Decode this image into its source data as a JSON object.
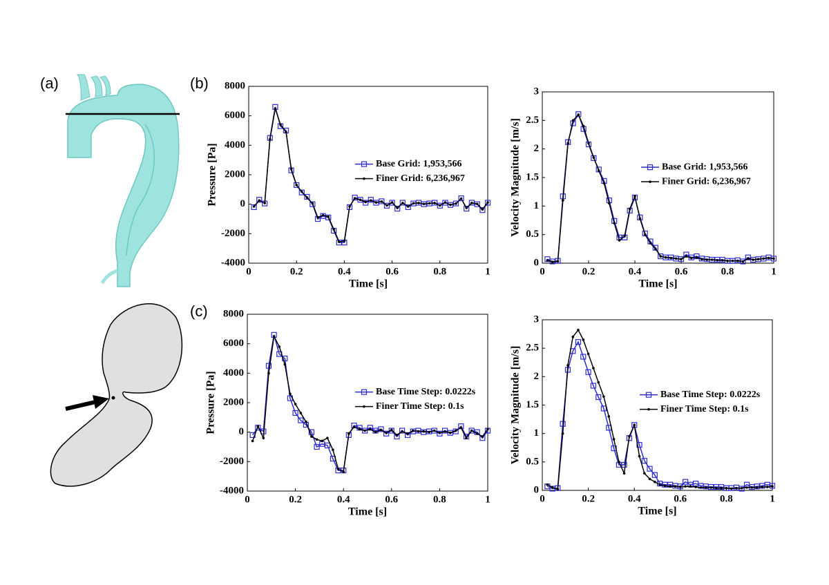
{
  "panels": {
    "a": "(a)",
    "b": "(b)",
    "c": "(c)"
  },
  "chart_data": [
    {
      "type": "line",
      "xlabel": "Time [s]",
      "ylabel": "Pressure [Pa]",
      "legend": "right",
      "xlim": [
        0,
        1
      ],
      "xticks": [
        0,
        0.2,
        0.4,
        0.6,
        0.8,
        1
      ],
      "ylim": [
        -4000,
        8000
      ],
      "yticks": [
        -4000,
        -2000,
        0,
        2000,
        4000,
        6000,
        8000
      ],
      "x": [
        0.022,
        0.044,
        0.067,
        0.089,
        0.111,
        0.133,
        0.156,
        0.178,
        0.2,
        0.222,
        0.244,
        0.267,
        0.289,
        0.311,
        0.333,
        0.356,
        0.378,
        0.4,
        0.422,
        0.444,
        0.467,
        0.489,
        0.511,
        0.533,
        0.556,
        0.578,
        0.6,
        0.622,
        0.644,
        0.667,
        0.689,
        0.711,
        0.733,
        0.756,
        0.778,
        0.8,
        0.822,
        0.844,
        0.867,
        0.889,
        0.911,
        0.933,
        0.956,
        0.978,
        1.0
      ],
      "series": [
        {
          "name": "Base Grid: 1,953,566",
          "color": "#2b2bd0",
          "marker": "square",
          "values": [
            -200,
            300,
            50,
            4500,
            6600,
            5300,
            5000,
            2300,
            1300,
            800,
            500,
            0,
            -1000,
            -800,
            -900,
            -1800,
            -2600,
            -2600,
            -200,
            450,
            300,
            100,
            300,
            100,
            200,
            -100,
            100,
            -300,
            100,
            -200,
            50,
            100,
            0,
            50,
            100,
            -100,
            100,
            -50,
            50,
            400,
            -300,
            100,
            0,
            -400,
            100
          ]
        },
        {
          "name": "Finer Grid: 6,236,967",
          "color": "#000000",
          "marker": "dot",
          "values": [
            -150,
            250,
            80,
            4400,
            6500,
            5400,
            4900,
            2400,
            1300,
            850,
            450,
            50,
            -900,
            -750,
            -850,
            -1700,
            -2550,
            -2500,
            -150,
            400,
            300,
            150,
            250,
            120,
            180,
            -80,
            120,
            -250,
            80,
            -150,
            60,
            80,
            20,
            60,
            80,
            -80,
            120,
            -40,
            40,
            380,
            -250,
            80,
            20,
            -350,
            120
          ]
        }
      ]
    },
    {
      "type": "line",
      "xlabel": "Time [s]",
      "ylabel": "Velocity Magnitude [m/s]",
      "legend": "right",
      "xlim": [
        0,
        1
      ],
      "xticks": [
        0,
        0.2,
        0.4,
        0.6,
        0.8,
        1
      ],
      "ylim": [
        0,
        3
      ],
      "yticks": [
        0,
        0.5,
        1,
        1.5,
        2,
        2.5,
        3
      ],
      "x": [
        0.022,
        0.044,
        0.067,
        0.089,
        0.111,
        0.133,
        0.156,
        0.178,
        0.2,
        0.222,
        0.244,
        0.267,
        0.289,
        0.311,
        0.333,
        0.356,
        0.378,
        0.4,
        0.422,
        0.444,
        0.467,
        0.489,
        0.511,
        0.533,
        0.556,
        0.578,
        0.6,
        0.622,
        0.644,
        0.667,
        0.689,
        0.711,
        0.733,
        0.756,
        0.778,
        0.8,
        0.822,
        0.844,
        0.867,
        0.889,
        0.911,
        0.933,
        0.956,
        0.978,
        1.0
      ],
      "series": [
        {
          "name": "Base Grid: 1,953,566",
          "color": "#2b2bd0",
          "marker": "square",
          "values": [
            0.07,
            0.03,
            0.04,
            1.17,
            2.12,
            2.45,
            2.61,
            2.35,
            2.08,
            1.84,
            1.64,
            1.44,
            1.1,
            0.74,
            0.45,
            0.45,
            0.92,
            1.15,
            0.8,
            0.52,
            0.38,
            0.27,
            0.12,
            0.1,
            0.1,
            0.08,
            0.07,
            0.15,
            0.1,
            0.12,
            0.08,
            0.07,
            0.06,
            0.06,
            0.06,
            0.04,
            0.04,
            0.05,
            0.03,
            0.1,
            0.06,
            0.07,
            0.08,
            0.1,
            0.08
          ]
        },
        {
          "name": "Finer Grid: 6,236,967",
          "color": "#000000",
          "marker": "dot",
          "values": [
            0.05,
            0.02,
            0.03,
            1.1,
            2.1,
            2.5,
            2.6,
            2.4,
            2.1,
            1.85,
            1.62,
            1.4,
            1.05,
            0.7,
            0.4,
            0.48,
            0.95,
            1.17,
            0.78,
            0.5,
            0.35,
            0.25,
            0.12,
            0.1,
            0.09,
            0.08,
            0.07,
            0.12,
            0.09,
            0.1,
            0.07,
            0.06,
            0.06,
            0.05,
            0.05,
            0.04,
            0.04,
            0.04,
            0.03,
            0.08,
            0.06,
            0.07,
            0.08,
            0.09,
            0.08
          ]
        }
      ]
    },
    {
      "type": "line",
      "xlabel": "Time [s]",
      "ylabel": "Pressure [Pa]",
      "legend": "right",
      "xlim": [
        0,
        1
      ],
      "xticks": [
        0,
        0.2,
        0.4,
        0.6,
        0.8,
        1
      ],
      "ylim": [
        -4000,
        8000
      ],
      "yticks": [
        -4000,
        -2000,
        0,
        2000,
        4000,
        6000,
        8000
      ],
      "x": [
        0.022,
        0.044,
        0.067,
        0.089,
        0.111,
        0.133,
        0.156,
        0.178,
        0.2,
        0.222,
        0.244,
        0.267,
        0.289,
        0.311,
        0.333,
        0.356,
        0.378,
        0.4,
        0.422,
        0.444,
        0.467,
        0.489,
        0.511,
        0.533,
        0.556,
        0.578,
        0.6,
        0.622,
        0.644,
        0.667,
        0.689,
        0.711,
        0.733,
        0.756,
        0.778,
        0.8,
        0.822,
        0.844,
        0.867,
        0.889,
        0.911,
        0.933,
        0.956,
        0.978,
        1.0
      ],
      "series": [
        {
          "name": "Base Time Step: 0.0222s",
          "color": "#2b2bd0",
          "marker": "square",
          "values": [
            -200,
            300,
            50,
            4500,
            6600,
            5300,
            5000,
            2300,
            1300,
            800,
            500,
            0,
            -1000,
            -800,
            -900,
            -1800,
            -2600,
            -2600,
            -200,
            450,
            300,
            100,
            300,
            100,
            200,
            -100,
            100,
            -300,
            100,
            -200,
            50,
            100,
            0,
            50,
            100,
            -100,
            100,
            -50,
            50,
            400,
            -300,
            100,
            0,
            -400,
            100
          ]
        },
        {
          "name": "Finer Time Step: 0.1s",
          "color": "#000000",
          "marker": "dot",
          "values": [
            -600,
            400,
            -400,
            4000,
            6500,
            5800,
            4600,
            2600,
            1900,
            1300,
            700,
            -300,
            -500,
            -600,
            -400,
            -1200,
            -2500,
            -2700,
            -100,
            350,
            200,
            100,
            200,
            0,
            150,
            -50,
            150,
            -200,
            50,
            -100,
            100,
            50,
            50,
            0,
            100,
            -50,
            50,
            -50,
            100,
            300,
            -400,
            100,
            -100,
            -300,
            200
          ]
        }
      ]
    },
    {
      "type": "line",
      "xlabel": "Time [s]",
      "ylabel": "Velocity Magnitude [m/s]",
      "legend": "right",
      "xlim": [
        0,
        1
      ],
      "xticks": [
        0,
        0.2,
        0.4,
        0.6,
        0.8,
        1
      ],
      "ylim": [
        0,
        3
      ],
      "yticks": [
        0,
        0.5,
        1,
        1.5,
        2,
        2.5,
        3
      ],
      "x": [
        0.022,
        0.044,
        0.067,
        0.089,
        0.111,
        0.133,
        0.156,
        0.178,
        0.2,
        0.222,
        0.244,
        0.267,
        0.289,
        0.311,
        0.333,
        0.356,
        0.378,
        0.4,
        0.422,
        0.444,
        0.467,
        0.489,
        0.511,
        0.533,
        0.556,
        0.578,
        0.6,
        0.622,
        0.644,
        0.667,
        0.689,
        0.711,
        0.733,
        0.756,
        0.778,
        0.8,
        0.822,
        0.844,
        0.867,
        0.889,
        0.911,
        0.933,
        0.956,
        0.978,
        1.0
      ],
      "series": [
        {
          "name": "Base Time Step: 0.0222s",
          "color": "#2b2bd0",
          "marker": "square",
          "values": [
            0.07,
            0.03,
            0.04,
            1.17,
            2.12,
            2.45,
            2.61,
            2.35,
            2.08,
            1.84,
            1.64,
            1.44,
            1.1,
            0.74,
            0.45,
            0.45,
            0.92,
            1.15,
            0.8,
            0.52,
            0.38,
            0.27,
            0.12,
            0.1,
            0.1,
            0.08,
            0.07,
            0.15,
            0.1,
            0.12,
            0.08,
            0.07,
            0.06,
            0.06,
            0.06,
            0.04,
            0.04,
            0.05,
            0.03,
            0.1,
            0.06,
            0.07,
            0.08,
            0.1,
            0.08
          ]
        },
        {
          "name": "Finer Time Step: 0.1s",
          "color": "#000000",
          "marker": "dot",
          "values": [
            0.1,
            0.05,
            0.02,
            1.0,
            2.2,
            2.7,
            2.82,
            2.65,
            2.4,
            2.15,
            1.9,
            1.65,
            1.3,
            0.9,
            0.5,
            0.3,
            0.95,
            1.15,
            0.6,
            0.3,
            0.2,
            0.15,
            0.1,
            0.08,
            0.07,
            0.07,
            0.06,
            0.07,
            0.07,
            0.06,
            0.05,
            0.05,
            0.05,
            0.04,
            0.04,
            0.04,
            0.03,
            0.04,
            0.04,
            0.05,
            0.05,
            0.05,
            0.06,
            0.06,
            0.07
          ]
        }
      ]
    }
  ]
}
